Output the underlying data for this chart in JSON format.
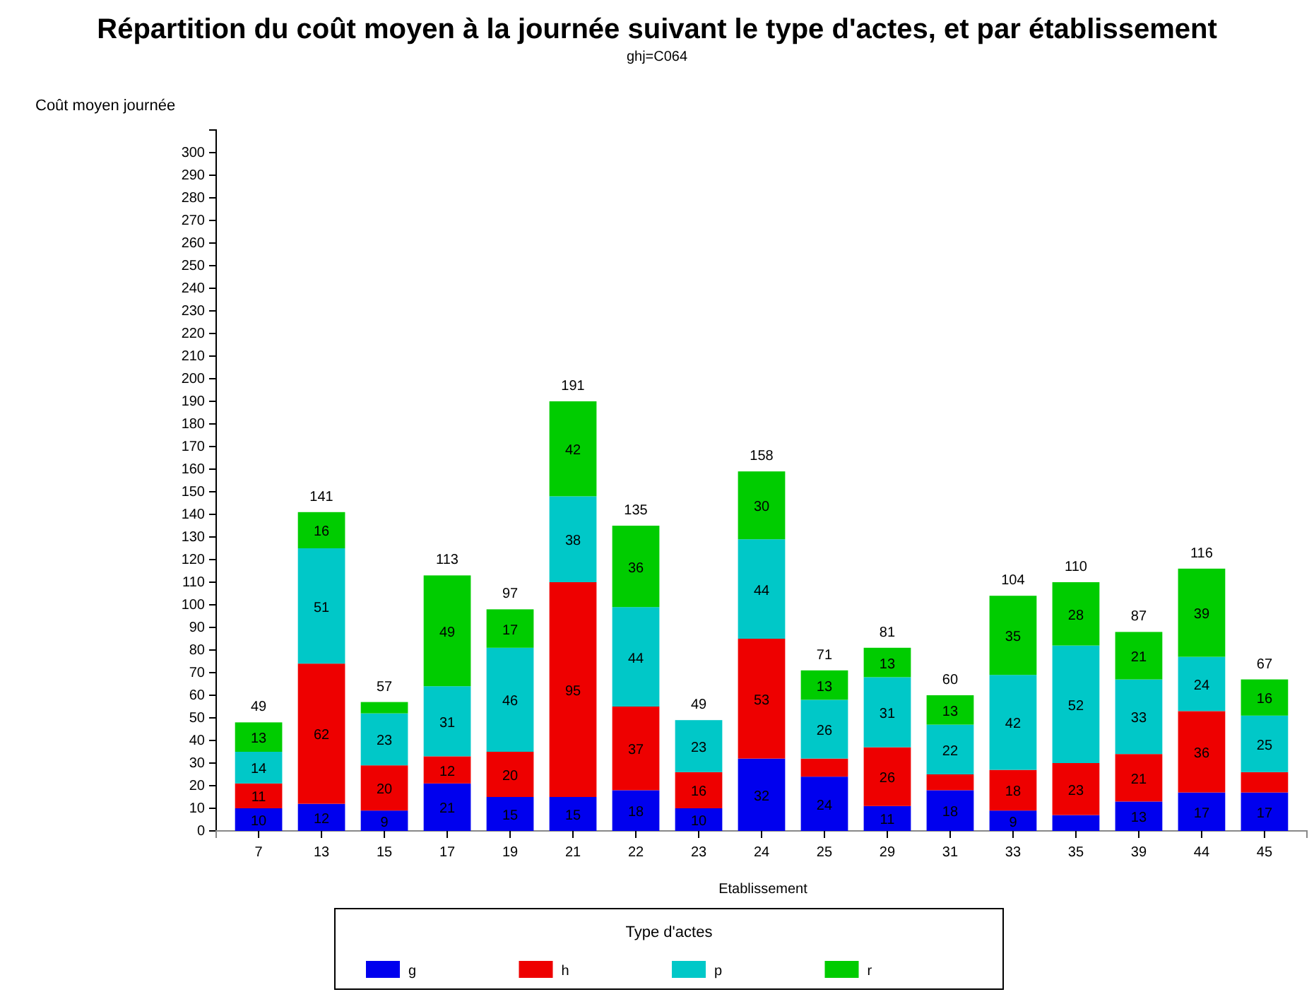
{
  "chart_data": {
    "type": "bar",
    "title": "Répartition du coût moyen à la journée suivant le type d'actes, et par établissement",
    "subtitle": "ghj=C064",
    "ylabel": "Coût moyen journée",
    "xlabel": "Etablissement",
    "legend_title": "Type d'actes",
    "legend": "bottom",
    "stacked": true,
    "grid": false,
    "categories": [
      "7",
      "13",
      "15",
      "17",
      "19",
      "21",
      "22",
      "23",
      "24",
      "25",
      "29",
      "31",
      "33",
      "35",
      "39",
      "44",
      "45"
    ],
    "ylim": [
      0,
      310
    ],
    "yticks": [
      0,
      10,
      20,
      30,
      40,
      50,
      60,
      70,
      80,
      90,
      100,
      110,
      120,
      130,
      140,
      150,
      160,
      170,
      180,
      190,
      200,
      210,
      220,
      230,
      240,
      250,
      260,
      270,
      280,
      290,
      300
    ],
    "series": [
      {
        "name": "g",
        "color": "#0000ee",
        "values": [
          10,
          12,
          9,
          21,
          15,
          15,
          18,
          10,
          32,
          24,
          11,
          18,
          9,
          7,
          13,
          17,
          17
        ],
        "value_labels": [
          "10",
          "12",
          "9",
          "21",
          "15",
          "15",
          "18",
          "10",
          "32",
          "24",
          "11",
          "18",
          "9",
          null,
          "13",
          "17",
          "17"
        ]
      },
      {
        "name": "h",
        "color": "#ee0000",
        "values": [
          11,
          62,
          20,
          12,
          20,
          95,
          37,
          16,
          53,
          8,
          26,
          7,
          18,
          23,
          21,
          36,
          9
        ],
        "value_labels": [
          "11",
          "62",
          "20",
          "12",
          "20",
          "95",
          "37",
          "16",
          "53",
          null,
          "26",
          null,
          "18",
          "23",
          "21",
          "36",
          null
        ]
      },
      {
        "name": "p",
        "color": "#00c8c8",
        "values": [
          14,
          51,
          23,
          31,
          46,
          38,
          44,
          23,
          44,
          26,
          31,
          22,
          42,
          52,
          33,
          24,
          25
        ],
        "value_labels": [
          "14",
          "51",
          "23",
          "31",
          "46",
          "38",
          "44",
          "23",
          "44",
          "26",
          "31",
          "22",
          "42",
          "52",
          "33",
          "24",
          "25"
        ]
      },
      {
        "name": "r",
        "color": "#00cc00",
        "values": [
          13,
          16,
          5,
          49,
          17,
          42,
          36,
          0,
          30,
          13,
          13,
          13,
          35,
          28,
          21,
          39,
          16
        ],
        "value_labels": [
          "13",
          "16",
          null,
          "49",
          "17",
          "42",
          "36",
          null,
          "30",
          "13",
          "13",
          "13",
          "35",
          "28",
          "21",
          "39",
          "16"
        ]
      }
    ],
    "totals": [
      "49",
      "141",
      "57",
      "113",
      "97",
      "191",
      "135",
      "49",
      "158",
      "71",
      "81",
      "60",
      "104",
      "110",
      "87",
      "116",
      "67"
    ]
  }
}
